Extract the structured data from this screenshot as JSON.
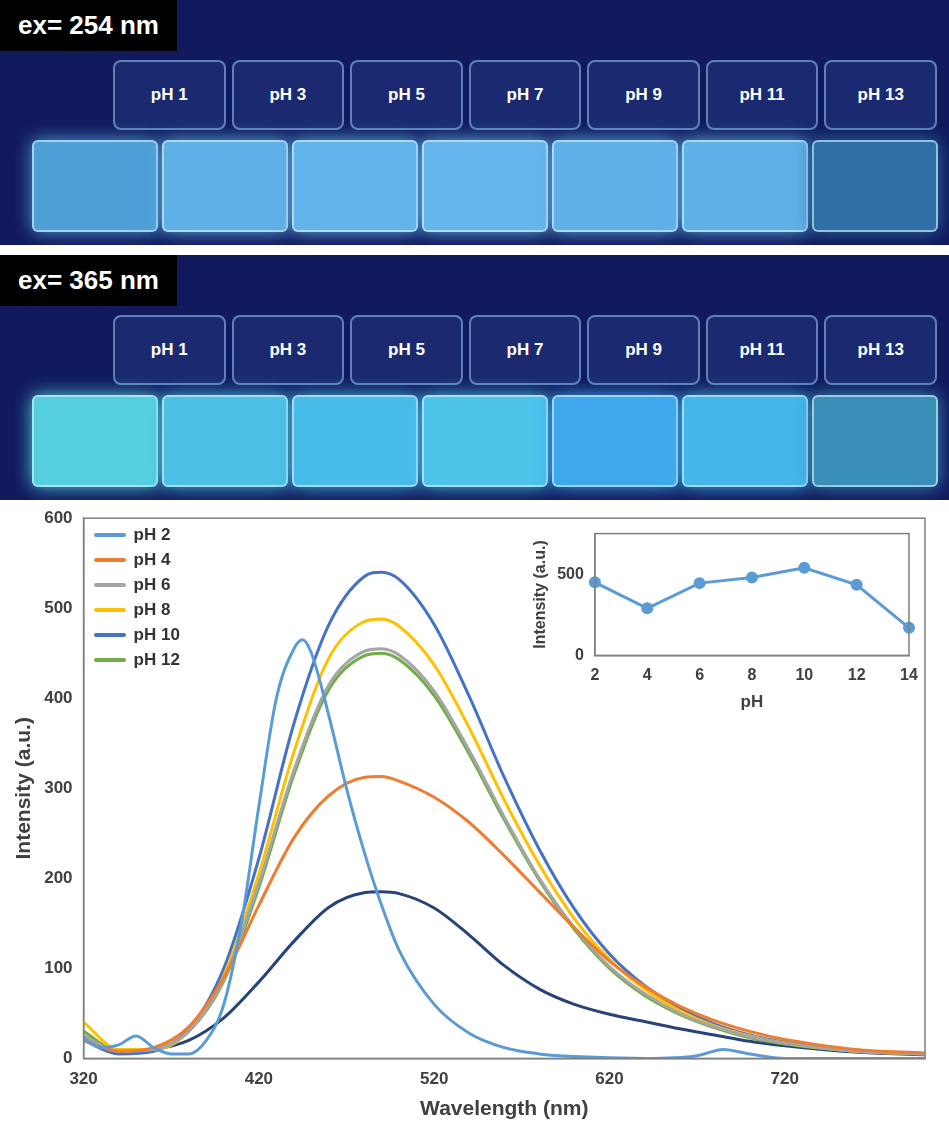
{
  "photo_panels": [
    {
      "label": "ex= 254 nm",
      "samples": [
        "pH 1",
        "pH 3",
        "pH 5",
        "pH 7",
        "pH 9",
        "pH 11",
        "pH 13"
      ],
      "colors": [
        "#4d9fd6",
        "#5fb0e6",
        "#63b4ea",
        "#66b6ec",
        "#60b0e8",
        "#5fb0e6",
        "#2f6fa8"
      ]
    },
    {
      "label": "ex= 365 nm",
      "samples": [
        "pH 1",
        "pH 3",
        "pH 5",
        "pH 7",
        "pH 9",
        "pH 11",
        "pH 13"
      ],
      "colors": [
        "#55cfe0",
        "#4cc0e6",
        "#48bce8",
        "#4dc3ea",
        "#3fa8ec",
        "#45b6ea",
        "#3a8fb8"
      ]
    }
  ],
  "chart_data": [
    {
      "type": "line",
      "x_label": "Wavelength (nm)",
      "y_label": "Intensity (a.u.)",
      "xlim": [
        320,
        800
      ],
      "xticks": [
        320,
        420,
        520,
        620,
        720
      ],
      "ylim": [
        0,
        600
      ],
      "yticks": [
        0,
        100,
        200,
        300,
        400,
        500,
        600
      ],
      "grid": false,
      "legend": "upper left",
      "series": [
        {
          "name": "pH 2",
          "color": "#5b9bd5",
          "x": [
            320,
            330,
            340,
            350,
            360,
            370,
            380,
            390,
            400,
            410,
            420,
            430,
            440,
            445,
            450,
            460,
            470,
            480,
            490,
            500,
            520,
            540,
            560,
            580,
            600,
            640,
            670,
            685,
            700,
            720,
            760,
            800
          ],
          "values": [
            22,
            12,
            15,
            25,
            12,
            5,
            5,
            20,
            60,
            150,
            280,
            400,
            455,
            465,
            450,
            380,
            300,
            230,
            170,
            120,
            60,
            28,
            12,
            5,
            2,
            0,
            3,
            10,
            5,
            0,
            0,
            0
          ]
        },
        {
          "name": "pH 4",
          "color": "#ed7d31",
          "x": [
            320,
            340,
            360,
            380,
            400,
            420,
            440,
            460,
            480,
            490,
            500,
            520,
            540,
            560,
            580,
            600,
            620,
            640,
            660,
            680,
            700,
            720,
            760,
            800
          ],
          "values": [
            20,
            8,
            12,
            35,
            90,
            170,
            245,
            292,
            312,
            313,
            308,
            290,
            262,
            225,
            185,
            145,
            108,
            80,
            58,
            42,
            30,
            21,
            10,
            6
          ]
        },
        {
          "name": "pH 6",
          "color": "#a5a5a5",
          "x": [
            320,
            340,
            360,
            380,
            400,
            420,
            440,
            460,
            480,
            490,
            500,
            520,
            540,
            560,
            580,
            600,
            620,
            640,
            660,
            680,
            700,
            720,
            760,
            800
          ],
          "values": [
            25,
            8,
            10,
            30,
            88,
            195,
            320,
            415,
            452,
            455,
            448,
            408,
            342,
            268,
            200,
            145,
            102,
            72,
            50,
            35,
            24,
            17,
            8,
            5
          ]
        },
        {
          "name": "pH 8",
          "color": "#ffc000",
          "x": [
            320,
            340,
            360,
            380,
            400,
            420,
            440,
            460,
            480,
            490,
            500,
            520,
            540,
            560,
            580,
            600,
            620,
            640,
            660,
            680,
            700,
            720,
            760,
            800
          ],
          "values": [
            40,
            10,
            10,
            30,
            92,
            205,
            340,
            445,
            485,
            488,
            480,
            437,
            367,
            287,
            215,
            155,
            110,
            77,
            53,
            36,
            25,
            17,
            8,
            5
          ]
        },
        {
          "name": "pH 10",
          "color": "#4472c4",
          "x": [
            320,
            340,
            360,
            380,
            400,
            420,
            440,
            460,
            480,
            490,
            500,
            520,
            540,
            560,
            580,
            600,
            620,
            640,
            660,
            680,
            700,
            720,
            760,
            800
          ],
          "values": [
            20,
            5,
            8,
            32,
            100,
            222,
            372,
            482,
            535,
            540,
            532,
            482,
            402,
            312,
            232,
            166,
            116,
            81,
            56,
            38,
            26,
            18,
            8,
            5
          ]
        },
        {
          "name": "pH 12",
          "color": "#70ad47",
          "x": [
            320,
            340,
            360,
            380,
            400,
            420,
            440,
            460,
            480,
            490,
            500,
            520,
            540,
            560,
            580,
            600,
            620,
            640,
            660,
            680,
            700,
            720,
            760,
            800
          ],
          "values": [
            30,
            8,
            10,
            30,
            86,
            190,
            315,
            410,
            447,
            450,
            443,
            403,
            338,
            265,
            198,
            143,
            100,
            70,
            49,
            34,
            23,
            16,
            8,
            5
          ]
        },
        {
          "name": null,
          "color": "#264478",
          "x": [
            320,
            340,
            360,
            380,
            400,
            420,
            440,
            460,
            480,
            490,
            500,
            520,
            540,
            560,
            580,
            600,
            620,
            640,
            660,
            680,
            700,
            720,
            760,
            800
          ],
          "values": [
            25,
            8,
            10,
            20,
            45,
            85,
            130,
            168,
            184,
            185,
            183,
            167,
            137,
            103,
            77,
            60,
            49,
            41,
            33,
            26,
            19,
            14,
            7,
            4
          ]
        }
      ]
    },
    {
      "type": "line",
      "x_label": "pH",
      "y_label": "Intensity (a.u.)",
      "x": [
        2,
        4,
        6,
        8,
        10,
        12,
        14
      ],
      "values": [
        450,
        290,
        445,
        480,
        540,
        435,
        170
      ],
      "color": "#5b9bd5",
      "marker": "circle",
      "xlim": [
        2,
        14
      ],
      "xticks": [
        2,
        4,
        6,
        8,
        10,
        12,
        14
      ],
      "ylim": [
        0,
        750
      ],
      "yticks": [
        0,
        500
      ],
      "grid": false
    }
  ]
}
